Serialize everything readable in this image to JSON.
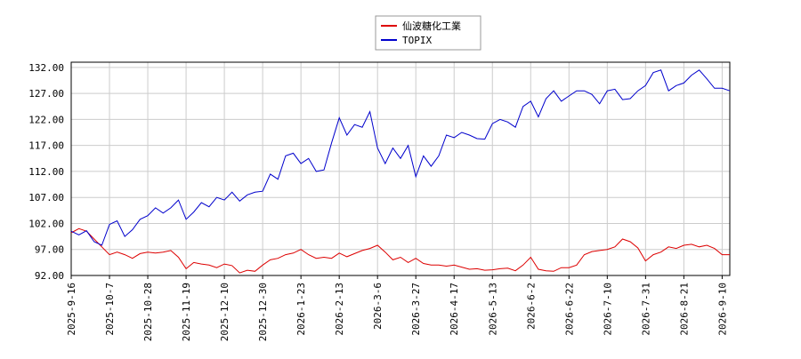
{
  "chart_data": {
    "type": "line",
    "categories": [
      "2025-9-16",
      null,
      null,
      null,
      null,
      "2025-10-7",
      null,
      null,
      null,
      null,
      "2025-10-28",
      null,
      null,
      null,
      null,
      "2025-11-19",
      null,
      null,
      null,
      null,
      "2025-12-10",
      null,
      null,
      null,
      null,
      "2025-12-30",
      null,
      null,
      null,
      null,
      "2026-1-23",
      null,
      null,
      null,
      null,
      "2026-2-13",
      null,
      null,
      null,
      null,
      "2026-3-6",
      null,
      null,
      null,
      null,
      "2026-3-27",
      null,
      null,
      null,
      null,
      "2026-4-17",
      null,
      null,
      null,
      null,
      "2026-5-13",
      null,
      null,
      null,
      null,
      "2026-6-2",
      null,
      null,
      null,
      null,
      "2026-6-22",
      null,
      null,
      null,
      null,
      "2026-7-10",
      null,
      null,
      null,
      null,
      "2026-7-31",
      null,
      null,
      null,
      null,
      "2026-8-21",
      null,
      null,
      null,
      null,
      "2026-9-10",
      null
    ],
    "series": [
      {
        "name": "仙波糖化工業",
        "color": "#dd0000",
        "values": [
          100.2,
          101,
          100.5,
          99,
          97.5,
          96,
          96.5,
          96,
          95.3,
          96.2,
          96.5,
          96.3,
          96.5,
          96.8,
          95.5,
          93.3,
          94.5,
          94.2,
          94,
          93.5,
          94.2,
          93.9,
          92.5,
          93,
          92.8,
          94,
          95,
          95.3,
          96,
          96.3,
          97,
          96,
          95.3,
          95.5,
          95.3,
          96.3,
          95.6,
          96.2,
          96.8,
          97.2,
          97.8,
          96.5,
          95,
          95.5,
          94.5,
          95.3,
          94.3,
          94,
          94,
          93.8,
          94,
          93.6,
          93.2,
          93.3,
          93,
          93.1,
          93.3,
          93.4,
          92.9,
          94,
          95.5,
          93.2,
          92.9,
          92.8,
          93.5,
          93.5,
          94,
          96,
          96.6,
          96.8,
          97,
          97.5,
          99,
          98.5,
          97.3,
          94.8,
          96,
          96.5,
          97.5,
          97.2,
          97.8,
          98,
          97.5,
          97.8,
          97.2,
          96,
          96
        ]
      },
      {
        "name": "TOPIX",
        "color": "#0000cc",
        "values": [
          100.5,
          99.8,
          100.6,
          98.5,
          97.8,
          101.8,
          102.5,
          99.5,
          100.8,
          102.8,
          103.5,
          105,
          104,
          105,
          106.5,
          102.8,
          104.2,
          106,
          105.2,
          107,
          106.5,
          108,
          106.3,
          107.5,
          108,
          108.2,
          111.5,
          110.5,
          115,
          115.5,
          113.5,
          114.5,
          112,
          112.3,
          117.5,
          122.3,
          119,
          121,
          120.5,
          123.5,
          116.5,
          113.5,
          116.5,
          114.5,
          117,
          111,
          115,
          113,
          115,
          119,
          118.5,
          119.5,
          119,
          118.3,
          118.2,
          121.2,
          122,
          121.5,
          120.5,
          124.5,
          125.5,
          122.5,
          126,
          127.5,
          125.5,
          126.5,
          127.5,
          127.5,
          126.8,
          125,
          127.5,
          127.8,
          125.8,
          126,
          127.5,
          128.5,
          131,
          131.5,
          127.5,
          128.5,
          129,
          130.5,
          131.5,
          129.8,
          128,
          128,
          127.5
        ]
      }
    ],
    "ylim": [
      92,
      133
    ],
    "yticks": [
      {
        "value": 92,
        "label": "92.00"
      },
      {
        "value": 97,
        "label": "97.00"
      },
      {
        "value": 102,
        "label": "102.00"
      },
      {
        "value": 107,
        "label": "107.00"
      },
      {
        "value": 112,
        "label": "112.00"
      },
      {
        "value": 117,
        "label": "117.00"
      },
      {
        "value": 122,
        "label": "122.00"
      },
      {
        "value": 127,
        "label": "127.00"
      },
      {
        "value": 132,
        "label": "132.00"
      }
    ],
    "grid": true,
    "legend": "top"
  }
}
